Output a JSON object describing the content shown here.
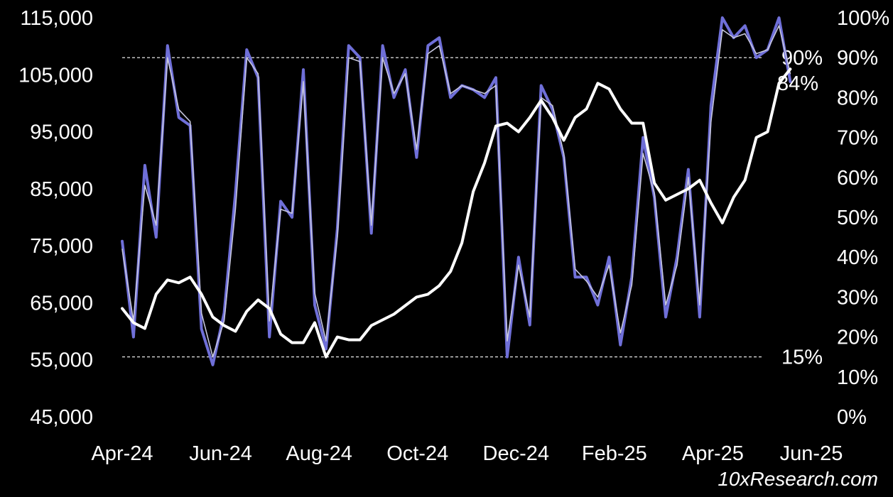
{
  "chart_data": {
    "type": "line",
    "title": "",
    "xlabel": "",
    "ylabel": "",
    "x_ticks": [
      "Apr-24",
      "Jun-24",
      "Aug-24",
      "Oct-24",
      "Dec-24",
      "Feb-25",
      "Apr-25",
      "Jun-25"
    ],
    "y_left": {
      "ticks": [
        "115,000",
        "105,000",
        "95,000",
        "85,000",
        "75,000",
        "65,000",
        "55,000",
        "45,000"
      ],
      "range": [
        45000,
        115000
      ]
    },
    "y_right": {
      "ticks": [
        "100%",
        "90%",
        "80%",
        "70%",
        "60%",
        "50%",
        "40%",
        "30%",
        "20%",
        "10%",
        "0%"
      ],
      "range": [
        0,
        100
      ]
    },
    "grid": false,
    "reference_lines": [
      {
        "axis": "right",
        "value": 90,
        "label": "90%",
        "style": "dashed"
      },
      {
        "axis": "right",
        "value": 15,
        "label": "15%",
        "style": "dashed"
      }
    ],
    "annotations": [
      {
        "text": "84%",
        "axis": "right",
        "value": 84
      }
    ],
    "source": "10xResearch.com",
    "colors": {
      "price": "#ffffff",
      "percent": "#6f6fd8",
      "percent_smooth": "#c7c7de",
      "background": "#000000"
    },
    "series": [
      {
        "axis": "left",
        "color": "#ffffff",
        "x": [
          "2024-04-01",
          "2024-04-08",
          "2024-04-15",
          "2024-04-22",
          "2024-04-29",
          "2024-05-06",
          "2024-05-13",
          "2024-05-20",
          "2024-05-27",
          "2024-06-03",
          "2024-06-10",
          "2024-06-17",
          "2024-06-24",
          "2024-07-01",
          "2024-07-08",
          "2024-07-15",
          "2024-07-22",
          "2024-07-29",
          "2024-08-05",
          "2024-08-12",
          "2024-08-19",
          "2024-08-26",
          "2024-09-02",
          "2024-09-09",
          "2024-09-16",
          "2024-09-23",
          "2024-09-30",
          "2024-10-07",
          "2024-10-14",
          "2024-10-21",
          "2024-10-28",
          "2024-11-04",
          "2024-11-11",
          "2024-11-18",
          "2024-11-25",
          "2024-12-02",
          "2024-12-09",
          "2024-12-16",
          "2024-12-23",
          "2024-12-30",
          "2025-01-06",
          "2025-01-13",
          "2025-01-20",
          "2025-01-27",
          "2025-02-03",
          "2025-02-10",
          "2025-02-17",
          "2025-02-24",
          "2025-03-03",
          "2025-03-10",
          "2025-03-17",
          "2025-03-24",
          "2025-03-31",
          "2025-04-07",
          "2025-04-14",
          "2025-04-21",
          "2025-04-28",
          "2025-05-05",
          "2025-05-12",
          "2025-05-19"
        ],
        "y": [
          64000,
          61500,
          60500,
          66500,
          69000,
          68500,
          69500,
          66500,
          62500,
          61000,
          60000,
          63500,
          65500,
          64000,
          59500,
          58000,
          58000,
          61500,
          55500,
          59000,
          58500,
          58500,
          61000,
          62000,
          63000,
          64500,
          66000,
          66500,
          68000,
          70500,
          75500,
          84500,
          89500,
          96000,
          96500,
          95000,
          97500,
          100500,
          97500,
          93500,
          97500,
          99000,
          103500,
          102500,
          99000,
          96500,
          96500,
          86000,
          83000,
          84000,
          85000,
          86500,
          82500,
          79000,
          83500,
          86500,
          94000,
          95000,
          103500,
          106000
        ]
      },
      {
        "axis": "right",
        "color": "#6f6fd8",
        "x": [
          "2024-04-01",
          "2024-04-08",
          "2024-04-15",
          "2024-04-22",
          "2024-04-29",
          "2024-05-06",
          "2024-05-13",
          "2024-05-20",
          "2024-05-27",
          "2024-06-03",
          "2024-06-10",
          "2024-06-17",
          "2024-06-24",
          "2024-07-01",
          "2024-07-08",
          "2024-07-15",
          "2024-07-22",
          "2024-07-29",
          "2024-08-05",
          "2024-08-12",
          "2024-08-19",
          "2024-08-26",
          "2024-09-02",
          "2024-09-09",
          "2024-09-16",
          "2024-09-23",
          "2024-09-30",
          "2024-10-07",
          "2024-10-14",
          "2024-10-21",
          "2024-10-28",
          "2024-11-04",
          "2024-11-11",
          "2024-11-18",
          "2024-11-25",
          "2024-12-02",
          "2024-12-09",
          "2024-12-16",
          "2024-12-23",
          "2024-12-30",
          "2025-01-06",
          "2025-01-13",
          "2025-01-20",
          "2025-01-27",
          "2025-02-03",
          "2025-02-10",
          "2025-02-17",
          "2025-02-24",
          "2025-03-03",
          "2025-03-10",
          "2025-03-17",
          "2025-03-24",
          "2025-03-31",
          "2025-04-07",
          "2025-04-14",
          "2025-04-21",
          "2025-04-28",
          "2025-05-05",
          "2025-05-12",
          "2025-05-19"
        ],
        "y": [
          44,
          20,
          63,
          45,
          93,
          75,
          73,
          22,
          13,
          26,
          56,
          92,
          85,
          20,
          54,
          50,
          87,
          28,
          17,
          47,
          93,
          90,
          46,
          93,
          80,
          87,
          65,
          93,
          95,
          80,
          83,
          82,
          80,
          85,
          15,
          40,
          23,
          83,
          77,
          65,
          35,
          35,
          28,
          40,
          18,
          35,
          70,
          55,
          25,
          40,
          62,
          25,
          78,
          100,
          95,
          98,
          90,
          92,
          100,
          84
        ]
      },
      {
        "axis": "right",
        "color": "#c7c7de",
        "x": [
          "2024-04-01",
          "2024-04-08",
          "2024-04-15",
          "2024-04-22",
          "2024-04-29",
          "2024-05-06",
          "2024-05-13",
          "2024-05-20",
          "2024-05-27",
          "2024-06-03",
          "2024-06-10",
          "2024-06-17",
          "2024-06-24",
          "2024-07-01",
          "2024-07-08",
          "2024-07-15",
          "2024-07-22",
          "2024-07-29",
          "2024-08-05",
          "2024-08-12",
          "2024-08-19",
          "2024-08-26",
          "2024-09-02",
          "2024-09-09",
          "2024-09-16",
          "2024-09-23",
          "2024-09-30",
          "2024-10-07",
          "2024-10-14",
          "2024-10-21",
          "2024-10-28",
          "2024-11-04",
          "2024-11-11",
          "2024-11-18",
          "2024-11-25",
          "2024-12-02",
          "2024-12-09",
          "2024-12-16",
          "2024-12-23",
          "2024-12-30",
          "2025-01-06",
          "2025-01-13",
          "2025-01-20",
          "2025-01-27",
          "2025-02-03",
          "2025-02-10",
          "2025-02-17",
          "2025-02-24",
          "2025-03-03",
          "2025-03-10",
          "2025-03-17",
          "2025-03-24",
          "2025-03-31",
          "2025-04-07",
          "2025-04-14",
          "2025-04-21",
          "2025-04-28",
          "2025-05-05",
          "2025-05-12",
          "2025-05-19"
        ],
        "y": [
          42,
          24,
          58,
          48,
          90,
          77,
          74,
          26,
          15,
          24,
          52,
          90,
          86,
          24,
          52,
          51,
          84,
          31,
          19,
          45,
          90,
          89,
          48,
          90,
          81,
          86,
          67,
          91,
          93,
          81,
          83,
          82,
          81,
          83,
          19,
          38,
          25,
          80,
          78,
          66,
          37,
          34,
          30,
          38,
          21,
          33,
          66,
          56,
          28,
          38,
          60,
          28,
          74,
          97,
          95,
          96,
          91,
          92,
          98,
          86
        ]
      }
    ]
  }
}
